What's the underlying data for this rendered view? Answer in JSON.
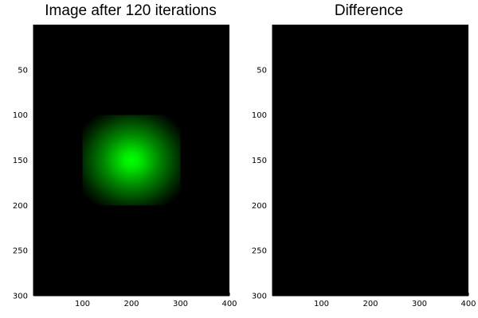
{
  "chart_data": [
    {
      "type": "heatmap",
      "title": "Image after 120 iterations",
      "xlabel": "",
      "ylabel": "",
      "xlim": [
        0,
        400
      ],
      "ylim": [
        0,
        300
      ],
      "y_inverted": true,
      "xticks": [
        100,
        200,
        300,
        400
      ],
      "yticks": [
        50,
        100,
        150,
        200,
        250,
        300
      ],
      "background_color": "#000000",
      "features": [
        {
          "shape": "rectangle_radial_gradient",
          "x_range": [
            100,
            300
          ],
          "y_range": [
            100,
            200
          ],
          "peak_center": [
            200,
            150
          ],
          "peak_color": "#00ff00",
          "edge_color": "#000000"
        }
      ]
    },
    {
      "type": "heatmap",
      "title": "Difference",
      "xlabel": "",
      "ylabel": "",
      "xlim": [
        0,
        400
      ],
      "ylim": [
        0,
        300
      ],
      "y_inverted": true,
      "xticks": [
        100,
        200,
        300,
        400
      ],
      "yticks": [
        50,
        100,
        150,
        200,
        250,
        300
      ],
      "background_color": "#000000",
      "features": []
    }
  ]
}
